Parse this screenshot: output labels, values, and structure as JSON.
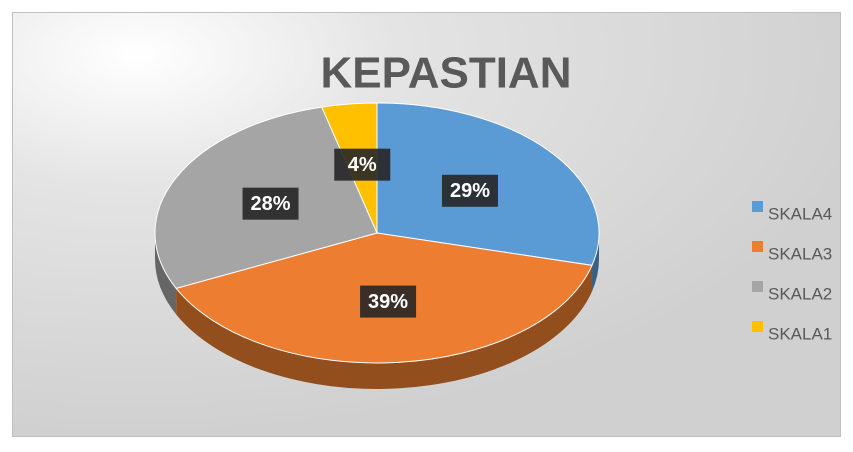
{
  "chart_data": {
    "type": "pie",
    "title": "KEPASTIAN",
    "categories": [
      "SKALA4",
      "SKALA3",
      "SKALA2",
      "SKALA1"
    ],
    "values": [
      29,
      39,
      28,
      4
    ],
    "value_labels": [
      "29%",
      "39%",
      "28%",
      "4%"
    ],
    "colors": [
      "#5b9bd5",
      "#ed7d31",
      "#a5a5a5",
      "#ffc000"
    ],
    "legend": "right"
  }
}
